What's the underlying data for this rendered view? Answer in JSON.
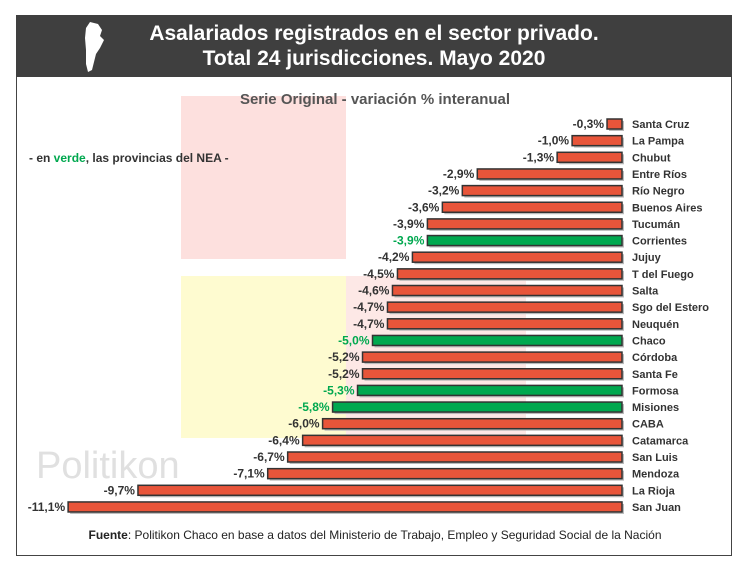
{
  "header": {
    "title_line1": "Asalariados registrados en el sector privado.",
    "title_line2": "Total 24 jurisdicciones. Mayo 2020"
  },
  "note": {
    "prefix": "- en ",
    "highlight": "verde",
    "suffix": ", las provincias del NEA -"
  },
  "watermark": "Politikon",
  "footer": {
    "label": "Fuente",
    "text": ": Politikon Chaco en base a datos del Ministerio de Trabajo, Empleo y Seguridad Social de la Nación"
  },
  "colors": {
    "default": "#e8553a",
    "nea": "#00a84f",
    "header": "#3f3f3f"
  },
  "chart_data": {
    "type": "bar",
    "orientation": "horizontal",
    "title": "Serie Original - variación % interanual",
    "categories": [
      "Santa Cruz",
      "La Pampa",
      "Chubut",
      "Entre Ríos",
      "Río Negro",
      "Buenos Aires",
      "Tucumán",
      "Corrientes",
      "Jujuy",
      "T del Fuego",
      "Salta",
      "Sgo del Estero",
      "Neuquén",
      "Chaco",
      "Córdoba",
      "Santa Fe",
      "Formosa",
      "Misiones",
      "CABA",
      "Catamarca",
      "San Luis",
      "Mendoza",
      "La Rioja",
      "San Juan"
    ],
    "values": [
      -0.3,
      -1.0,
      -1.3,
      -2.9,
      -3.2,
      -3.6,
      -3.9,
      -3.9,
      -4.2,
      -4.5,
      -4.6,
      -4.7,
      -4.7,
      -5.0,
      -5.2,
      -5.2,
      -5.3,
      -5.8,
      -6.0,
      -6.4,
      -6.7,
      -7.1,
      -9.7,
      -11.1
    ],
    "labels": [
      "-0,3%",
      "-1,0%",
      "-1,3%",
      "-2,9%",
      "-3,2%",
      "-3,6%",
      "-3,9%",
      "-3,9%",
      "-4,2%",
      "-4,5%",
      "-4,6%",
      "-4,7%",
      "-4,7%",
      "-5,0%",
      "-5,2%",
      "-5,2%",
      "-5,3%",
      "-5,8%",
      "-6,0%",
      "-6,4%",
      "-6,7%",
      "-7,1%",
      "-9,7%",
      "-11,1%"
    ],
    "nea": [
      "Corrientes",
      "Chaco",
      "Formosa",
      "Misiones"
    ],
    "grid": false
  }
}
